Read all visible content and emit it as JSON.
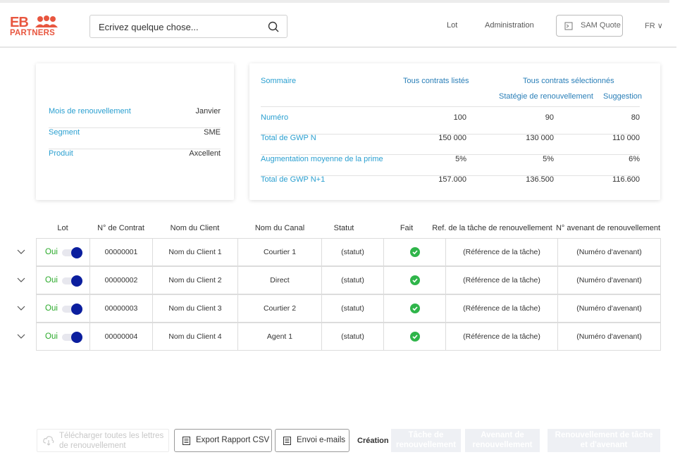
{
  "header": {
    "logo_top": "EB",
    "logo_bottom": "PARTNERS",
    "search_placeholder": "Ecrivez quelque chose...",
    "nav_lot": "Lot",
    "nav_admin": "Administration",
    "sam_quote": "SAM Quote",
    "lang": "FR ∨",
    "icons": {
      "search": "search-icon",
      "quote": "document-icon",
      "people": "people-icon"
    }
  },
  "info_card": [
    {
      "key": "Mois de renouvellement",
      "value": "Janvier"
    },
    {
      "key": "Segment",
      "value": "SME"
    },
    {
      "key": "Produit",
      "value": "Axcellent"
    }
  ],
  "summary": {
    "title": "Sommaire",
    "col_all": "Tous contrats listés",
    "col_selected": "Tous contrats sélectionnés",
    "col_strategy": "Statégie de renouvellement",
    "col_suggestion": "Suggestion",
    "rows": [
      {
        "label": "Numéro",
        "all": "100",
        "strategy": "90",
        "suggestion": "80"
      },
      {
        "label": "Total de GWP N",
        "all": "150 000",
        "strategy": "130 000",
        "suggestion": "110 000"
      },
      {
        "label": "Augmentation moyenne de la prime",
        "all": "5%",
        "strategy": "5%",
        "suggestion": "6%"
      },
      {
        "label": "Total de GWP N+1",
        "all": "157.000",
        "strategy": "136.500",
        "suggestion": "116.600"
      }
    ]
  },
  "table": {
    "headers": [
      "Lot",
      "N° de Contrat",
      "Nom du Client",
      "Nom du Canal",
      "Statut",
      "Fait",
      "Ref. de la tâche de renouvellement",
      "N° avenant de renouvellement"
    ],
    "rows": [
      {
        "lot": "Oui",
        "contract": "00000001",
        "client": "Nom du Client 1",
        "channel": "Courtier 1",
        "status": "(statut)",
        "task_ref": "(Référence de la tâche)",
        "endorsement": "(Numéro d'avenant)"
      },
      {
        "lot": "Oui",
        "contract": "00000002",
        "client": "Nom du Client 2",
        "channel": "Direct",
        "status": "(statut)",
        "task_ref": "(Référence de la tâche)",
        "endorsement": "(Numéro d'avenant)"
      },
      {
        "lot": "Oui",
        "contract": "00000003",
        "client": "Nom du Client 3",
        "channel": "Courtier 2",
        "status": "(statut)",
        "task_ref": "(Référence de la tâche)",
        "endorsement": "(Numéro d'avenant)"
      },
      {
        "lot": "Oui",
        "contract": "00000004",
        "client": "Nom du Client 4",
        "channel": "Agent 1",
        "status": "(statut)",
        "task_ref": "(Référence de la tâche)",
        "endorsement": "(Numéro d'avenant)"
      }
    ]
  },
  "footer": {
    "download_line1": "Télécharger toutes les lettres",
    "download_line2": "de renouvellement",
    "export_csv": "Export Rapport CSV",
    "send_emails": "Envoi e-mails",
    "creation": "Création",
    "task_line1": "Tâche de",
    "task_line2": "renouvellement",
    "endorse_line1": "Avenant de",
    "endorse_line2": "renouvellement",
    "both_line1": "Renouvellement de tâche",
    "both_line2": "et d'avenant"
  },
  "colors": {
    "brand": "#e8563f",
    "link": "#2a9fd0",
    "toggle": "#0b1e9e",
    "done": "#2fb54a",
    "oui": "#2aaa2a"
  }
}
